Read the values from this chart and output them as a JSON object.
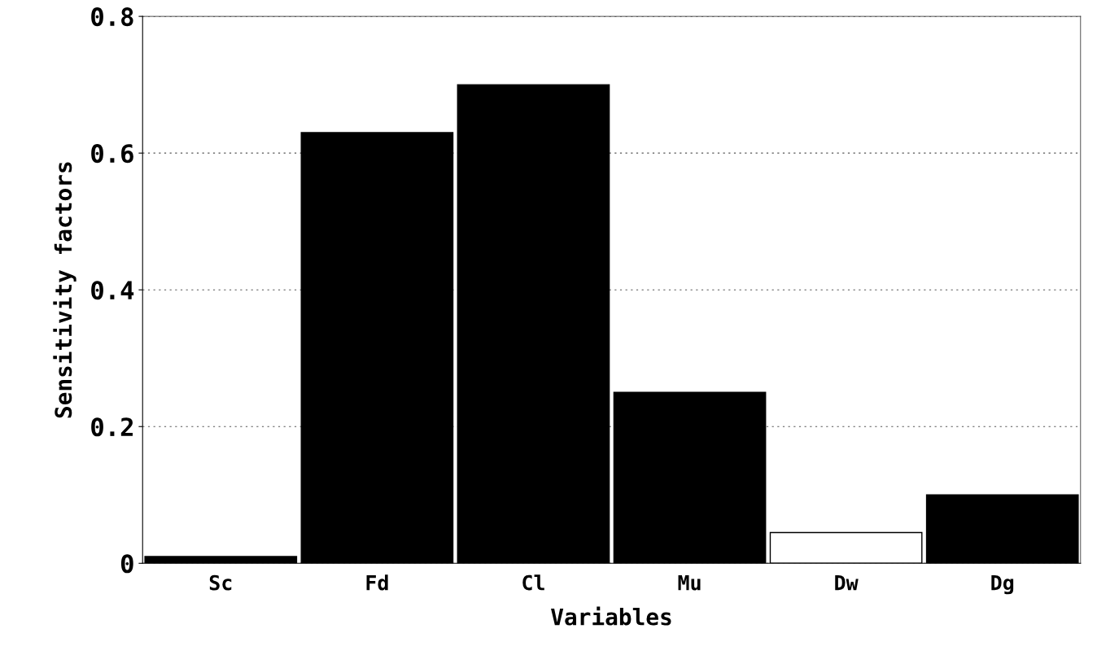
{
  "chart_data": {
    "type": "bar",
    "xlabel": "Variables",
    "ylabel": "Sensitivity factors",
    "categories": [
      "Sc",
      "Fd",
      "Cl",
      "Mu",
      "Dw",
      "Dg"
    ],
    "values": [
      0.01,
      0.63,
      0.7,
      0.25,
      0.045,
      0.1
    ],
    "colors": [
      "#000000",
      "#000000",
      "#000000",
      "#000000",
      "#ffffff",
      "#000000"
    ],
    "ylim": [
      0,
      0.8
    ],
    "yticks": [
      {
        "value": 0,
        "label": "0"
      },
      0.2,
      0.4,
      0.6,
      0.8
    ],
    "grid": "y"
  }
}
